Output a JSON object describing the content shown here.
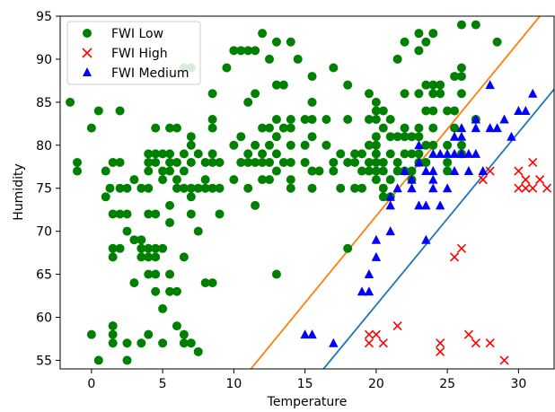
{
  "chart_data": {
    "type": "scatter",
    "title": "",
    "xlabel": "Temperature",
    "ylabel": "Humidity",
    "xlim": [
      -2.2,
      32.5
    ],
    "ylim": [
      54,
      95
    ],
    "xticks": [
      0,
      5,
      10,
      15,
      20,
      25,
      30
    ],
    "yticks": [
      55,
      60,
      65,
      70,
      75,
      80,
      85,
      90,
      95
    ],
    "xtick_labels": [
      "0",
      "5",
      "10",
      "15",
      "20",
      "25",
      "30"
    ],
    "ytick_labels": [
      "55",
      "60",
      "65",
      "70",
      "75",
      "80",
      "85",
      "90",
      "95"
    ],
    "grid": false,
    "legend_position": "top-left",
    "legend": [
      "FWI Low",
      "FWI High",
      "FWI Medium"
    ],
    "series": [
      {
        "name": "FWI Low",
        "marker": "circle",
        "color": "#008000",
        "points": [
          [
            -1.5,
            85
          ],
          [
            -1,
            78
          ],
          [
            -1,
            77
          ],
          [
            0,
            82
          ],
          [
            0,
            58
          ],
          [
            0.5,
            84
          ],
          [
            0.5,
            55
          ],
          [
            1,
            77
          ],
          [
            1,
            74
          ],
          [
            1.3,
            75
          ],
          [
            1.5,
            78
          ],
          [
            1.5,
            72
          ],
          [
            1.5,
            68
          ],
          [
            1.5,
            67
          ],
          [
            1.5,
            59
          ],
          [
            1.5,
            58
          ],
          [
            1.5,
            57
          ],
          [
            2,
            84
          ],
          [
            2,
            78
          ],
          [
            2,
            75
          ],
          [
            2,
            72
          ],
          [
            2,
            68
          ],
          [
            2.5,
            75
          ],
          [
            2.5,
            72
          ],
          [
            2.5,
            70
          ],
          [
            2.5,
            57
          ],
          [
            2.5,
            55
          ],
          [
            3,
            76
          ],
          [
            3,
            69
          ],
          [
            3,
            64
          ],
          [
            3.5,
            75
          ],
          [
            3.5,
            69
          ],
          [
            3.5,
            68
          ],
          [
            3.5,
            67
          ],
          [
            3.5,
            57
          ],
          [
            4,
            79
          ],
          [
            4,
            78
          ],
          [
            4,
            77
          ],
          [
            4,
            75
          ],
          [
            4,
            72
          ],
          [
            4,
            68
          ],
          [
            4,
            67
          ],
          [
            4,
            65
          ],
          [
            4,
            58
          ],
          [
            4.5,
            82
          ],
          [
            4.5,
            79
          ],
          [
            4.5,
            78
          ],
          [
            4.5,
            72
          ],
          [
            4.5,
            68
          ],
          [
            4.5,
            67
          ],
          [
            4.5,
            65
          ],
          [
            4.5,
            63
          ],
          [
            5,
            79
          ],
          [
            5,
            77
          ],
          [
            5,
            76
          ],
          [
            5,
            68
          ],
          [
            5,
            61
          ],
          [
            5,
            57
          ],
          [
            5.5,
            82
          ],
          [
            5.5,
            79
          ],
          [
            5.5,
            78
          ],
          [
            5.5,
            77
          ],
          [
            5.5,
            73
          ],
          [
            5.5,
            71
          ],
          [
            5.5,
            65
          ],
          [
            5.5,
            63
          ],
          [
            6,
            82
          ],
          [
            6,
            78
          ],
          [
            6,
            76
          ],
          [
            6,
            75
          ],
          [
            6,
            63
          ],
          [
            6,
            59
          ],
          [
            6.5,
            79
          ],
          [
            6.5,
            77
          ],
          [
            6.5,
            75
          ],
          [
            6.5,
            89
          ],
          [
            6.5,
            67
          ],
          [
            6.5,
            58
          ],
          [
            6.5,
            57
          ],
          [
            7,
            89
          ],
          [
            7,
            81
          ],
          [
            7,
            80
          ],
          [
            7,
            78
          ],
          [
            7,
            75
          ],
          [
            7,
            74
          ],
          [
            7,
            72
          ],
          [
            7,
            57
          ],
          [
            7.5,
            79
          ],
          [
            7.5,
            75
          ],
          [
            7.5,
            70
          ],
          [
            7.5,
            56
          ],
          [
            8,
            78
          ],
          [
            8,
            76
          ],
          [
            8,
            75
          ],
          [
            8,
            64
          ],
          [
            8.5,
            86
          ],
          [
            8.5,
            83
          ],
          [
            8.5,
            82
          ],
          [
            8.5,
            79
          ],
          [
            8.5,
            78
          ],
          [
            8.5,
            75
          ],
          [
            8.5,
            64
          ],
          [
            9,
            78
          ],
          [
            9,
            75
          ],
          [
            9,
            72
          ],
          [
            9.5,
            89
          ],
          [
            10,
            91
          ],
          [
            10,
            80
          ],
          [
            10,
            76
          ],
          [
            10.5,
            91
          ],
          [
            10.5,
            81
          ],
          [
            10.5,
            78
          ],
          [
            11,
            91
          ],
          [
            11,
            85
          ],
          [
            11,
            79
          ],
          [
            11,
            78
          ],
          [
            11,
            75
          ],
          [
            11.5,
            91
          ],
          [
            11.5,
            86
          ],
          [
            11.5,
            80
          ],
          [
            11.5,
            78
          ],
          [
            11.5,
            73
          ],
          [
            12,
            93
          ],
          [
            12,
            82
          ],
          [
            12,
            79
          ],
          [
            12,
            78
          ],
          [
            12,
            76
          ],
          [
            12.5,
            90
          ],
          [
            12.5,
            82
          ],
          [
            12.5,
            80
          ],
          [
            12.5,
            78
          ],
          [
            12.5,
            76
          ],
          [
            13,
            92
          ],
          [
            13,
            87
          ],
          [
            13,
            83
          ],
          [
            13,
            81
          ],
          [
            13,
            79
          ],
          [
            13,
            77
          ],
          [
            13,
            65
          ],
          [
            13.5,
            87
          ],
          [
            13.5,
            82
          ],
          [
            13.5,
            78
          ],
          [
            14,
            92
          ],
          [
            14,
            83
          ],
          [
            14,
            82
          ],
          [
            14,
            80
          ],
          [
            14,
            78
          ],
          [
            14,
            76
          ],
          [
            14,
            75
          ],
          [
            14.5,
            90
          ],
          [
            15,
            83
          ],
          [
            15,
            80
          ],
          [
            15,
            78
          ],
          [
            15.5,
            88
          ],
          [
            15.5,
            85
          ],
          [
            15.5,
            83
          ],
          [
            15.5,
            81
          ],
          [
            15.5,
            77
          ],
          [
            15.5,
            75
          ],
          [
            16,
            77
          ],
          [
            16.5,
            83
          ],
          [
            16.5,
            80
          ],
          [
            17,
            89
          ],
          [
            17,
            78
          ],
          [
            17,
            77
          ],
          [
            17.5,
            79
          ],
          [
            17.5,
            75
          ],
          [
            18,
            87
          ],
          [
            18,
            83
          ],
          [
            18,
            78
          ],
          [
            18,
            68
          ],
          [
            18.5,
            79
          ],
          [
            18.5,
            78
          ],
          [
            18.5,
            75
          ],
          [
            19,
            79
          ],
          [
            19,
            77
          ],
          [
            19,
            75
          ],
          [
            19.5,
            83
          ],
          [
            19.5,
            80
          ],
          [
            19.5,
            78
          ],
          [
            19.5,
            77
          ],
          [
            19.5,
            86
          ],
          [
            20,
            85
          ],
          [
            20,
            84
          ],
          [
            20,
            83
          ],
          [
            20,
            81
          ],
          [
            20,
            80
          ],
          [
            20,
            79
          ],
          [
            20,
            78
          ],
          [
            20,
            77
          ],
          [
            20,
            76
          ],
          [
            20.5,
            84
          ],
          [
            20.5,
            82
          ],
          [
            20.5,
            78
          ],
          [
            20.5,
            77
          ],
          [
            20.5,
            75
          ],
          [
            20.5,
            74
          ],
          [
            21,
            83
          ],
          [
            21,
            81
          ],
          [
            21,
            79
          ],
          [
            21,
            76
          ],
          [
            21,
            74
          ],
          [
            21.5,
            90
          ],
          [
            21.5,
            81
          ],
          [
            21.5,
            78
          ],
          [
            21.5,
            77
          ],
          [
            22,
            92
          ],
          [
            22,
            86
          ],
          [
            22,
            82
          ],
          [
            22,
            81
          ],
          [
            22,
            79
          ],
          [
            22,
            77
          ],
          [
            22.5,
            81
          ],
          [
            22.5,
            79
          ],
          [
            22.5,
            77
          ],
          [
            22.5,
            76
          ],
          [
            23,
            93
          ],
          [
            23,
            91
          ],
          [
            23,
            86
          ],
          [
            23,
            82
          ],
          [
            23,
            81
          ],
          [
            23,
            79
          ],
          [
            23,
            78
          ],
          [
            23.5,
            92
          ],
          [
            23.5,
            87
          ],
          [
            23.5,
            84
          ],
          [
            23.5,
            80
          ],
          [
            23.5,
            78
          ],
          [
            24,
            93
          ],
          [
            24,
            87
          ],
          [
            24,
            86
          ],
          [
            24,
            84
          ],
          [
            24,
            82
          ],
          [
            24,
            80
          ],
          [
            24.5,
            87
          ],
          [
            24.5,
            86
          ],
          [
            25,
            84
          ],
          [
            25,
            80
          ],
          [
            25,
            78
          ],
          [
            25,
            77
          ],
          [
            25.5,
            88
          ],
          [
            25.5,
            84
          ],
          [
            25.5,
            82
          ],
          [
            26,
            94
          ],
          [
            26,
            89
          ],
          [
            26,
            88
          ],
          [
            26,
            86
          ],
          [
            26,
            80
          ],
          [
            26,
            79
          ],
          [
            27,
            94
          ],
          [
            27,
            83
          ],
          [
            28.5,
            92
          ]
        ]
      },
      {
        "name": "FWI High",
        "marker": "x",
        "color": "#ff0000",
        "points": [
          [
            19.5,
            57
          ],
          [
            19.5,
            58
          ],
          [
            20,
            58
          ],
          [
            20.5,
            57
          ],
          [
            21.5,
            59
          ],
          [
            24.5,
            57
          ],
          [
            24.5,
            56
          ],
          [
            25.5,
            67
          ],
          [
            26,
            68
          ],
          [
            26.5,
            58
          ],
          [
            27,
            57
          ],
          [
            27.5,
            76
          ],
          [
            28,
            77
          ],
          [
            28,
            57
          ],
          [
            29,
            55
          ],
          [
            30,
            77
          ],
          [
            30,
            75
          ],
          [
            30.5,
            76
          ],
          [
            30.5,
            75
          ],
          [
            31,
            75
          ],
          [
            31,
            78
          ],
          [
            31.5,
            76
          ],
          [
            32,
            75
          ]
        ]
      },
      {
        "name": "FWI Medium",
        "marker": "triangle",
        "color": "#0000ff",
        "points": [
          [
            15,
            58
          ],
          [
            15.5,
            58
          ],
          [
            17,
            57
          ],
          [
            19,
            63
          ],
          [
            19.5,
            65
          ],
          [
            19.5,
            63
          ],
          [
            20,
            67
          ],
          [
            20,
            69
          ],
          [
            21,
            70
          ],
          [
            21,
            73
          ],
          [
            21,
            74
          ],
          [
            21.5,
            75
          ],
          [
            22,
            77
          ],
          [
            22.5,
            75
          ],
          [
            22.5,
            76
          ],
          [
            23,
            73
          ],
          [
            23,
            78
          ],
          [
            23,
            80
          ],
          [
            23.5,
            73
          ],
          [
            23.5,
            69
          ],
          [
            23.5,
            77
          ],
          [
            24,
            79
          ],
          [
            24,
            77
          ],
          [
            24,
            76
          ],
          [
            24,
            75
          ],
          [
            24.5,
            73
          ],
          [
            24.5,
            79
          ],
          [
            25,
            75
          ],
          [
            25,
            79
          ],
          [
            25.5,
            81
          ],
          [
            25.5,
            79
          ],
          [
            25.5,
            77
          ],
          [
            26,
            81
          ],
          [
            26,
            82
          ],
          [
            26,
            79
          ],
          [
            26.5,
            77
          ],
          [
            26.5,
            79
          ],
          [
            27,
            83
          ],
          [
            27,
            82
          ],
          [
            27,
            79
          ],
          [
            27.5,
            77
          ],
          [
            28,
            87
          ],
          [
            28,
            82
          ],
          [
            28.5,
            82
          ],
          [
            29,
            83
          ],
          [
            29.5,
            81
          ],
          [
            30,
            84
          ],
          [
            30.5,
            84
          ],
          [
            31,
            86
          ]
        ]
      }
    ],
    "lines": [
      {
        "color": "#ff7f0e",
        "points": [
          [
            11.2,
            54
          ],
          [
            31.5,
            95
          ]
        ]
      },
      {
        "color": "#1f77b4",
        "points": [
          [
            16.3,
            54
          ],
          [
            32.5,
            86.5
          ]
        ]
      }
    ]
  }
}
